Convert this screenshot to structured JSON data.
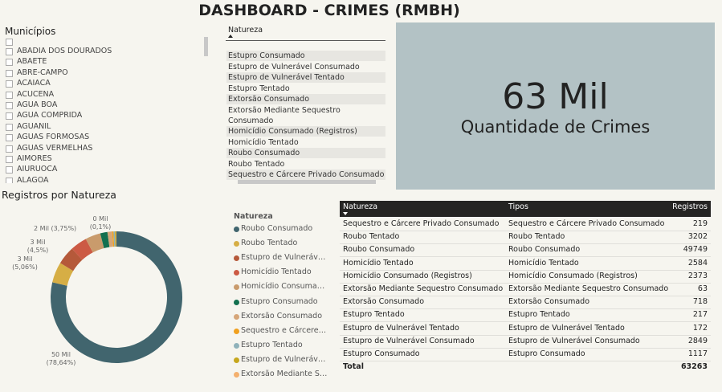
{
  "header": {
    "title": "DASHBOARD - CRIMES (RMBH)"
  },
  "municipios": {
    "title": "Municípios",
    "items": [
      "ABADIA DOS DOURADOS",
      "ABAETE",
      "ABRE-CAMPO",
      "ACAIACA",
      "ACUCENA",
      "AGUA BOA",
      "AGUA COMPRIDA",
      "AGUANIL",
      "AGUAS FORMOSAS",
      "AGUAS VERMELHAS",
      "AIMORES",
      "AIURUOCA",
      "ALAGOA"
    ]
  },
  "natureza_list": {
    "title": "Natureza",
    "items": [
      "Estupro Consumado",
      "Estupro de Vulnerável Consumado",
      "Estupro de Vulnerável Tentado",
      "Estupro Tentado",
      "Extorsão Consumado",
      "Extorsão Mediante Sequestro Consumado",
      "Homicídio Consumado (Registros)",
      "Homicídio Tentado",
      "Roubo Consumado",
      "Roubo Tentado",
      "Sequestro e Cárcere Privado Consumado"
    ]
  },
  "card": {
    "value": "63 Mil",
    "label": "Quantidade de Crimes"
  },
  "chart_data": {
    "type": "pie",
    "title": "Registros por Natureza",
    "legend_title": "Natureza",
    "categories": [
      "Roubo Consumado",
      "Roubo Tentado",
      "Estupro de Vulnerável Consumado",
      "Homicídio Tentado",
      "Homicídio Consumado (Registros)",
      "Estupro Consumado",
      "Extorsão Consumado",
      "Sequestro e Cárcere Privado Consumado",
      "Estupro Tentado",
      "Estupro de Vulnerável Tentado",
      "Extorsão Mediante Sequestro Consumado"
    ],
    "values": [
      49749,
      3202,
      2849,
      2584,
      2373,
      1117,
      718,
      219,
      217,
      172,
      63
    ],
    "value_labels": [
      "50 Mil (78,64%)",
      "3 Mil (5,06%)",
      "3 Mil (4,5%)",
      null,
      "2 Mil (3,75%)",
      null,
      null,
      null,
      null,
      null,
      "0 Mil (0,1%)"
    ],
    "colors": [
      "#41656e",
      "#d6ae45",
      "#b5593a",
      "#cc5a44",
      "#c99b6c",
      "#13704f",
      "#d6a679",
      "#f0a01e",
      "#8fb2ba",
      "#c6a71d",
      "#f4b06e"
    ]
  },
  "table": {
    "headers": [
      "Natureza",
      "Tipos",
      "Registros"
    ],
    "rows": [
      [
        "Sequestro e Cárcere Privado Consumado",
        "Sequestro e Cárcere Privado Consumado",
        219
      ],
      [
        "Roubo Tentado",
        "Roubo Tentado",
        3202
      ],
      [
        "Roubo Consumado",
        "Roubo Consumado",
        49749
      ],
      [
        "Homicídio Tentado",
        "Homicídio Tentado",
        2584
      ],
      [
        "Homicídio Consumado (Registros)",
        "Homicídio Consumado (Registros)",
        2373
      ],
      [
        "Extorsão Mediante Sequestro Consumado",
        "Extorsão Mediante Sequestro Consumado",
        63
      ],
      [
        "Extorsão Consumado",
        "Extorsão Consumado",
        718
      ],
      [
        "Estupro Tentado",
        "Estupro Tentado",
        217
      ],
      [
        "Estupro de Vulnerável Tentado",
        "Estupro de Vulnerável Tentado",
        172
      ],
      [
        "Estupro de Vulnerável Consumado",
        "Estupro de Vulnerável Consumado",
        2849
      ],
      [
        "Estupro Consumado",
        "Estupro Consumado",
        1117
      ]
    ],
    "total": [
      "Total",
      63263
    ]
  }
}
